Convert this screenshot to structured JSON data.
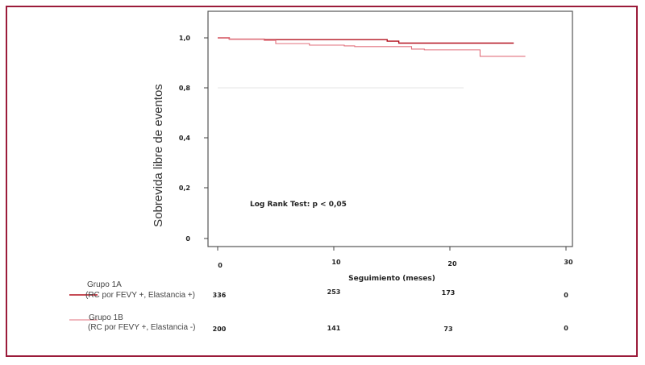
{
  "chart_data": {
    "type": "line",
    "subtype": "kaplan-meier step",
    "xlabel": "Seguimiento (meses)",
    "ylabel": "Sobrevida libre de eventos",
    "xlim": [
      0,
      30
    ],
    "xticks": [
      "0",
      "10",
      "20",
      "30"
    ],
    "yticks": [
      "1,0",
      "0,8",
      "0,4",
      "0,2",
      "0"
    ],
    "annotation": "Log Rank Test: p < 0,05",
    "series": [
      {
        "name": "Grupo 1A",
        "name_detail": "(RC por FEVY +, Elastancia +)",
        "color": "#b3101e",
        "x": [
          0,
          1,
          4,
          14.6,
          15.6,
          25.5
        ],
        "y": [
          1.0,
          0.995,
          0.993,
          0.987,
          0.979,
          0.979
        ],
        "at_risk": [
          "336",
          "253",
          "173",
          "0"
        ]
      },
      {
        "name": "Grupo 1B",
        "name_detail": "(RC por FEVY +,  Elastancia -)",
        "color": "#e2707c",
        "x": [
          0,
          1,
          4,
          5,
          7.9,
          10.9,
          11.8,
          16.7,
          17.8,
          22.6,
          26.5
        ],
        "y": [
          1.0,
          0.995,
          0.99,
          0.977,
          0.971,
          0.968,
          0.965,
          0.955,
          0.952,
          0.926,
          0.926
        ],
        "at_risk": [
          "200",
          "141",
          "73",
          "0"
        ]
      }
    ],
    "grid": false,
    "legend": "bottom-left"
  }
}
